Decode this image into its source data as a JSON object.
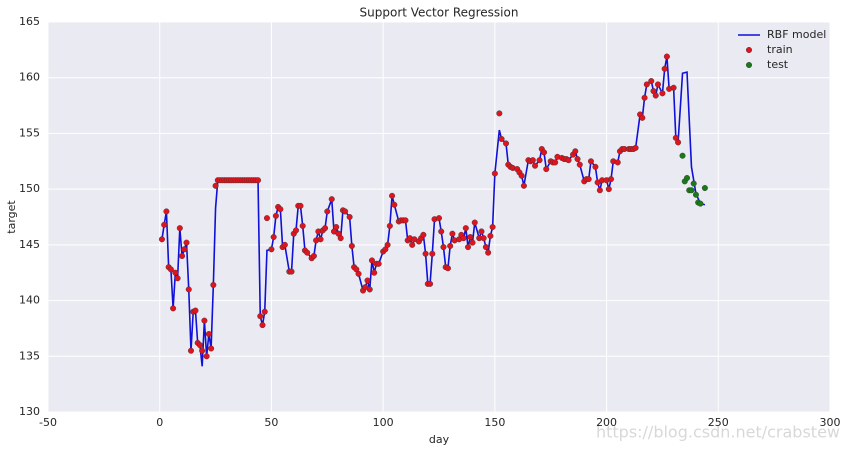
{
  "chart_data": {
    "type": "line",
    "title": "Support Vector Regression",
    "x_label": "day",
    "y_label": "target",
    "xlim": [
      -50,
      300
    ],
    "xticks": [
      -50,
      0,
      50,
      100,
      150,
      200,
      250,
      300
    ],
    "ylim": [
      130,
      165
    ],
    "yticks": [
      130,
      135,
      140,
      145,
      150,
      155,
      160,
      165
    ],
    "grid": true,
    "legend": "upper right",
    "watermark": "https://blog.csdn.net/crabstew",
    "series": [
      {
        "name": "RBF model",
        "type": "line",
        "color": "#1010d8",
        "x": [
          1,
          2,
          3,
          4,
          5,
          6,
          7,
          8,
          9,
          10,
          11,
          12,
          13,
          14,
          15,
          16,
          17,
          18,
          19,
          20,
          21,
          22,
          23,
          24,
          25,
          26,
          27,
          28,
          29,
          30,
          31,
          32,
          33,
          34,
          35,
          36,
          37,
          38,
          39,
          40,
          41,
          42,
          43,
          44,
          45,
          46,
          47,
          48,
          50,
          51,
          52,
          53,
          54,
          55,
          56,
          58,
          59,
          60,
          61,
          62,
          63,
          64,
          65,
          66,
          68,
          69,
          70,
          71,
          72,
          73,
          74,
          75,
          77,
          78,
          79,
          80,
          81,
          82,
          83,
          85,
          86,
          87,
          88,
          89,
          91,
          92,
          93,
          94,
          95,
          96,
          97,
          98,
          100,
          101,
          102,
          103,
          104,
          105,
          107,
          108,
          109,
          110,
          111,
          112,
          113,
          114,
          116,
          117,
          118,
          119,
          120,
          121,
          122,
          123,
          125,
          126,
          127,
          128,
          129,
          130,
          131,
          132,
          134,
          135,
          136,
          137,
          138,
          139,
          140,
          141,
          143,
          144,
          145,
          146,
          147,
          148,
          149,
          150,
          152,
          153,
          155,
          156,
          157,
          158,
          160,
          161,
          162,
          163,
          165,
          166,
          167,
          168,
          170,
          171,
          172,
          173,
          175,
          176,
          177,
          178,
          180,
          181,
          182,
          183,
          185,
          186,
          187,
          188,
          190,
          191,
          192,
          193,
          195,
          196,
          197,
          198,
          200,
          201,
          202,
          203,
          205,
          206,
          207,
          208,
          210,
          211,
          212,
          213,
          215,
          216,
          217,
          218,
          220,
          221,
          222,
          223,
          225,
          226,
          227,
          228,
          230,
          231,
          232,
          234,
          236,
          238,
          240,
          242,
          244
        ],
        "values": [
          145.5,
          146.8,
          148,
          143,
          142.8,
          139.3,
          142.5,
          142,
          146.5,
          144,
          144.6,
          145.2,
          141,
          135.5,
          139,
          139.1,
          136.2,
          136,
          134.1,
          138.2,
          135,
          137,
          135.7,
          141.4,
          148.3,
          150.8,
          150.8,
          150.8,
          150.8,
          150.8,
          150.8,
          150.8,
          150.8,
          150.8,
          150.8,
          150.8,
          150.8,
          150.8,
          150.8,
          150.8,
          150.8,
          150.8,
          150.8,
          150.8,
          138.6,
          137.8,
          139,
          144.5,
          144.6,
          145.7,
          147.6,
          148.4,
          148.2,
          144.8,
          145,
          142.6,
          142.6,
          146,
          146.3,
          148.5,
          148.5,
          146.7,
          144.5,
          144.3,
          143.8,
          144,
          145.4,
          146.2,
          145.5,
          146.3,
          146.5,
          148,
          149.1,
          146.2,
          146.6,
          146,
          145.6,
          148.1,
          148,
          147.5,
          144.9,
          143,
          142.8,
          142.4,
          140.9,
          141.2,
          141.8,
          141,
          143.6,
          142.5,
          143.3,
          143.3,
          144.4,
          144.6,
          145,
          146.7,
          149.4,
          148.6,
          147.1,
          147.2,
          147.2,
          147.2,
          145.4,
          145.6,
          145,
          145.5,
          145.3,
          145.6,
          145.9,
          144.2,
          141.5,
          141.5,
          144.2,
          147.3,
          147.4,
          146.2,
          144.8,
          143,
          142.9,
          144.9,
          146,
          145.4,
          145.5,
          145.9,
          145.6,
          146.5,
          144.8,
          145.7,
          145.2,
          147,
          145.6,
          146.2,
          145.6,
          144.8,
          144.3,
          145.8,
          146.6,
          151.4,
          155.3,
          154.5,
          154.1,
          152.2,
          152,
          151.9,
          151.8,
          151.5,
          151.2,
          150.3,
          152.6,
          152.5,
          152.6,
          152.1,
          152.6,
          153.6,
          153.3,
          151.8,
          152.5,
          152.4,
          152.4,
          152.9,
          152.8,
          152.7,
          152.7,
          152.6,
          153.1,
          153.4,
          152.7,
          152.2,
          150.7,
          150.9,
          150.9,
          152.5,
          152,
          150.6,
          149.9,
          150.8,
          150.8,
          150,
          150.9,
          152.5,
          152.4,
          153.4,
          153.6,
          153.6,
          153.6,
          153.6,
          153.6,
          153.7,
          156.7,
          156.4,
          158.2,
          159.4,
          159.7,
          158.8,
          158.4,
          159.4,
          158.6,
          160.8,
          161.9,
          159,
          159.1,
          154.6,
          154.2,
          160.4,
          160.5,
          152,
          149.6,
          148.7,
          148.6
        ]
      },
      {
        "name": "train",
        "type": "scatter",
        "color": "#e0141e",
        "x": [
          1,
          2,
          3,
          4,
          5,
          6,
          7,
          8,
          9,
          10,
          11,
          12,
          13,
          14,
          15,
          16,
          17,
          18,
          19,
          20,
          21,
          22,
          23,
          24,
          25,
          26,
          27,
          28,
          29,
          30,
          31,
          32,
          33,
          34,
          35,
          36,
          37,
          38,
          39,
          40,
          41,
          42,
          43,
          44,
          45,
          46,
          47,
          48,
          50,
          51,
          52,
          53,
          54,
          55,
          56,
          58,
          59,
          60,
          61,
          62,
          63,
          64,
          65,
          66,
          68,
          69,
          70,
          71,
          72,
          73,
          74,
          75,
          77,
          78,
          79,
          80,
          81,
          82,
          83,
          85,
          86,
          87,
          88,
          89,
          91,
          92,
          93,
          94,
          95,
          96,
          97,
          98,
          100,
          101,
          102,
          103,
          104,
          105,
          107,
          108,
          109,
          110,
          111,
          112,
          113,
          114,
          116,
          117,
          118,
          119,
          120,
          121,
          122,
          123,
          125,
          126,
          127,
          128,
          129,
          130,
          131,
          132,
          134,
          135,
          136,
          137,
          138,
          139,
          140,
          141,
          143,
          144,
          145,
          146,
          147,
          148,
          149,
          150,
          152,
          153,
          155,
          156,
          157,
          158,
          160,
          161,
          162,
          163,
          165,
          166,
          167,
          168,
          170,
          171,
          172,
          173,
          175,
          176,
          177,
          178,
          180,
          181,
          182,
          183,
          185,
          186,
          187,
          188,
          190,
          191,
          192,
          193,
          195,
          196,
          197,
          198,
          200,
          201,
          202,
          203,
          205,
          206,
          207,
          208,
          210,
          211,
          212,
          213,
          215,
          216,
          217,
          218,
          220,
          221,
          222,
          223,
          225,
          226,
          227,
          228,
          230,
          231,
          232
        ],
        "values": [
          145.5,
          146.8,
          148,
          143,
          142.8,
          139.3,
          142.5,
          142,
          146.5,
          144,
          144.6,
          145.2,
          141,
          135.5,
          139,
          139.1,
          136.2,
          136,
          135.5,
          138.2,
          135,
          137,
          135.7,
          141.4,
          150.3,
          150.8,
          150.8,
          150.8,
          150.8,
          150.8,
          150.8,
          150.8,
          150.8,
          150.8,
          150.8,
          150.8,
          150.8,
          150.8,
          150.8,
          150.8,
          150.8,
          150.8,
          150.8,
          150.8,
          138.6,
          137.8,
          139,
          147.4,
          144.6,
          145.7,
          147.6,
          148.4,
          148.2,
          144.8,
          145,
          142.6,
          142.6,
          146,
          146.3,
          148.5,
          148.5,
          146.7,
          144.5,
          144.3,
          143.8,
          144,
          145.4,
          146.2,
          145.5,
          146.3,
          146.5,
          148,
          149.1,
          146.2,
          146.6,
          146,
          145.6,
          148.1,
          148,
          147.5,
          144.9,
          143,
          142.8,
          142.4,
          140.9,
          141.2,
          141.8,
          141,
          143.6,
          142.5,
          143.3,
          143.3,
          144.4,
          144.6,
          145,
          146.7,
          149.4,
          148.6,
          147.1,
          147.2,
          147.2,
          147.2,
          145.4,
          145.6,
          145,
          145.5,
          145.3,
          145.6,
          145.9,
          144.2,
          141.5,
          141.5,
          144.2,
          147.3,
          147.4,
          146.2,
          144.8,
          143,
          142.9,
          144.9,
          146,
          145.4,
          145.5,
          145.9,
          145.6,
          146.5,
          144.8,
          145.7,
          145.2,
          147,
          145.6,
          146.2,
          145.6,
          144.8,
          144.3,
          145.8,
          146.6,
          151.4,
          156.8,
          154.5,
          154.1,
          152.2,
          152,
          151.9,
          151.8,
          151.5,
          151.2,
          150.3,
          152.6,
          152.5,
          152.6,
          152.1,
          152.6,
          153.6,
          153.3,
          151.8,
          152.5,
          152.4,
          152.4,
          152.9,
          152.8,
          152.7,
          152.7,
          152.6,
          153.1,
          153.4,
          152.7,
          152.2,
          150.7,
          150.9,
          150.9,
          152.5,
          152,
          150.6,
          149.9,
          150.8,
          150.8,
          150,
          150.9,
          152.5,
          152.4,
          153.4,
          153.6,
          153.6,
          153.6,
          153.6,
          153.6,
          153.7,
          156.7,
          156.4,
          158.2,
          159.4,
          159.7,
          158.8,
          158.4,
          159.4,
          158.6,
          160.8,
          161.9,
          159,
          159.1,
          154.6,
          154.2
        ]
      },
      {
        "name": "test",
        "type": "scatter",
        "color": "#1a7a1a",
        "x": [
          234,
          235,
          236,
          237,
          238,
          239,
          240,
          241,
          242,
          244
        ],
        "values": [
          153,
          150.7,
          151,
          149.9,
          149.9,
          150.5,
          149.5,
          148.8,
          148.7,
          150.1
        ]
      }
    ]
  }
}
